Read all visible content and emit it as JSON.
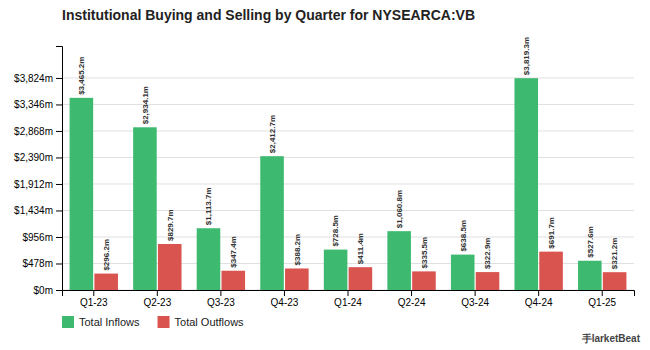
{
  "chart_data": {
    "type": "bar",
    "title": "Institutional Buying and Selling by Quarter for NYSEARCA:VB",
    "categories": [
      "Q1-23",
      "Q2-23",
      "Q3-23",
      "Q4-23",
      "Q1-24",
      "Q2-24",
      "Q3-24",
      "Q4-24",
      "Q1-25"
    ],
    "series": [
      {
        "name": "Total Inflows",
        "color": "#3dba6f",
        "values": [
          3465.2,
          2934.1,
          1113.7,
          2412.7,
          728.5,
          1060.8,
          638.5,
          3819.3,
          527.6
        ],
        "value_labels": [
          "$3,465.2m",
          "$2,934.1m",
          "$1,113.7m",
          "$2,412.7m",
          "$728.5m",
          "$1,060.8m",
          "$638.5m",
          "$3,819.3m",
          "$527.6m"
        ]
      },
      {
        "name": "Total Outflows",
        "color": "#d9534f",
        "values": [
          296.2,
          829.7,
          347.4,
          388.2,
          411.4,
          335.5,
          322.9,
          691.7,
          321.2
        ],
        "value_labels": [
          "$296.2m",
          "$829.7m",
          "$347.4m",
          "$388.2m",
          "$411.4m",
          "$335.5m",
          "$322.9m",
          "$691.7m",
          "$321.2m"
        ]
      }
    ],
    "ylim": [
      0,
      4400
    ],
    "yticks": [
      {
        "value": 0,
        "label": "$0m"
      },
      {
        "value": 478,
        "label": "$478m"
      },
      {
        "value": 956,
        "label": "$956m"
      },
      {
        "value": 1434,
        "label": "$1,434m"
      },
      {
        "value": 1912,
        "label": "$1,912m"
      },
      {
        "value": 2390,
        "label": "$2,390m"
      },
      {
        "value": 2868,
        "label": "$2,868m"
      },
      {
        "value": 3346,
        "label": "$3,346m"
      },
      {
        "value": 3824,
        "label": "$3,824m"
      }
    ],
    "grid": true,
    "data_labels": true,
    "legend": "bottom-left",
    "annotations": [
      "⼿larketBeat"
    ]
  }
}
